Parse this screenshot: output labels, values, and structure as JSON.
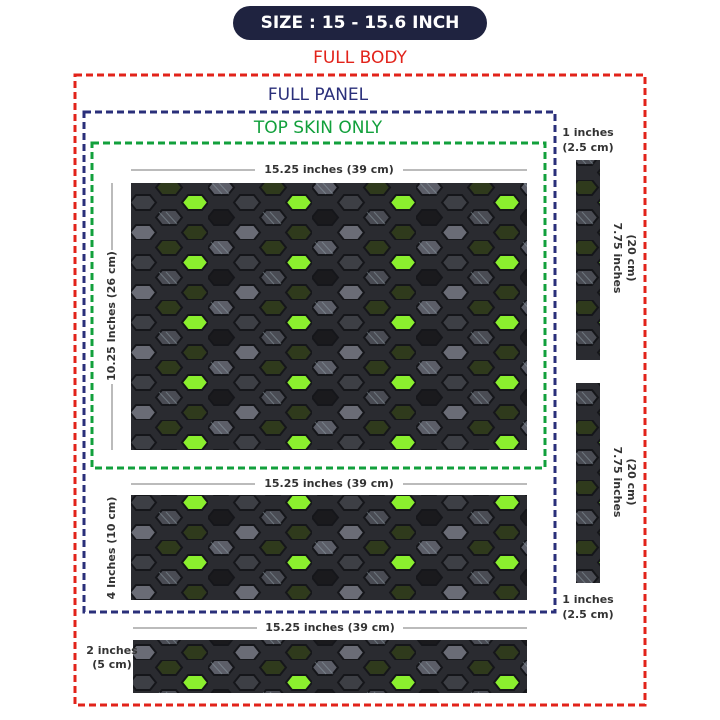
{
  "badge": "SIZE : 15 - 15.6 INCH",
  "frames": {
    "full_body": "FULL BODY",
    "full_panel": "FULL PANEL",
    "top_skin": "TOP SKIN ONLY"
  },
  "top_panel": {
    "width": "15.25 inches (39 cm)",
    "height": "10.25 Inches (26 cm)"
  },
  "palm_rest": {
    "width": "15.25 inches (39 cm)",
    "height": "4 Inches (10 cm)"
  },
  "bottom_strip": {
    "width": "15.25 inches (39 cm)",
    "height": [
      "2 inches",
      "(5 cm)"
    ]
  },
  "side_strips": [
    {
      "width": [
        "1 inches",
        "(2.5 cm)"
      ],
      "height": [
        "7.75 inches",
        "(20 cm)"
      ]
    },
    {
      "width": [
        "1 inches",
        "(2.5 cm)"
      ],
      "height": [
        "7.75 inches",
        "(20 cm)"
      ]
    }
  ]
}
